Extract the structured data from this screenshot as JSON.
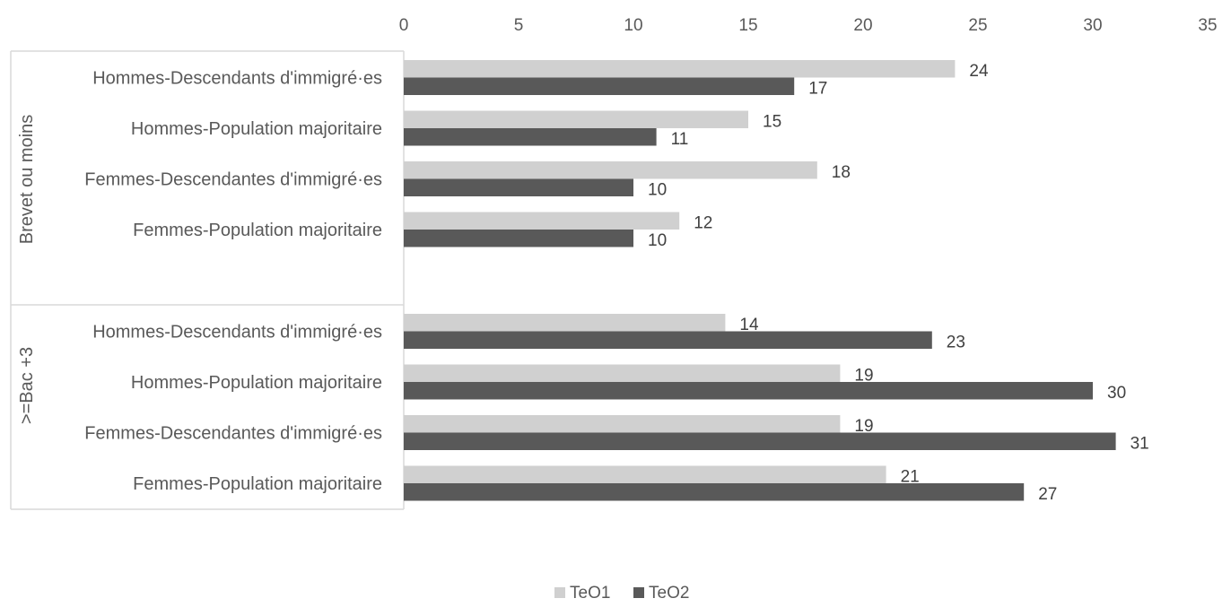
{
  "chart_data": {
    "type": "bar",
    "orientation": "horizontal",
    "title": "",
    "xlabel": "",
    "ylabel": "",
    "xlim": [
      0,
      35
    ],
    "x_ticks": [
      0,
      5,
      10,
      15,
      20,
      25,
      30,
      35
    ],
    "grid": false,
    "legend_position": "bottom",
    "groups": [
      {
        "name": "Brevet ou moins",
        "categories": [
          "Hommes-Descendants d'immigré·es",
          "Hommes-Population majoritaire",
          "Femmes-Descendantes d'immigré·es",
          "Femmes-Population majoritaire"
        ]
      },
      {
        "name": ">=Bac +3",
        "categories": [
          "Hommes-Descendants d'immigré·es",
          "Hommes-Population majoritaire",
          "Femmes-Descendantes d'immigré·es",
          "Femmes-Population majoritaire"
        ]
      }
    ],
    "series": [
      {
        "name": "TeO1",
        "color": "#d0d0d0",
        "values": [
          24,
          15,
          18,
          12,
          14,
          19,
          19,
          21
        ]
      },
      {
        "name": "TeO2",
        "color": "#595959",
        "values": [
          17,
          11,
          10,
          10,
          23,
          30,
          31,
          27
        ]
      }
    ]
  }
}
